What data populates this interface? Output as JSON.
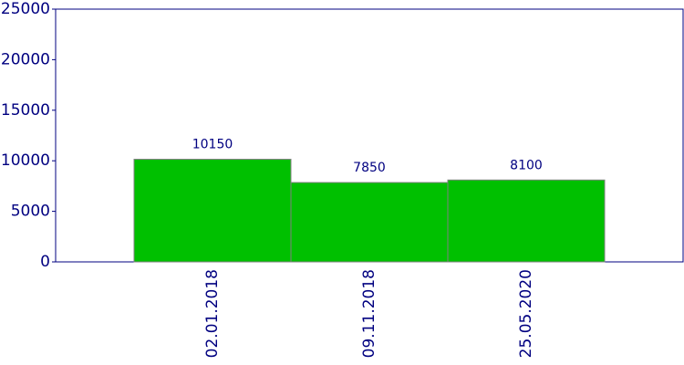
{
  "chart_data": {
    "type": "bar",
    "categories": [
      "02.01.2018",
      "09.11.2018",
      "25.05.2020"
    ],
    "values": [
      10150,
      7850,
      8100
    ],
    "color": "#00c000",
    "ylim": [
      0,
      25000
    ],
    "yticks": [
      0,
      5000,
      10000,
      15000,
      20000,
      25000
    ],
    "grid": false
  }
}
